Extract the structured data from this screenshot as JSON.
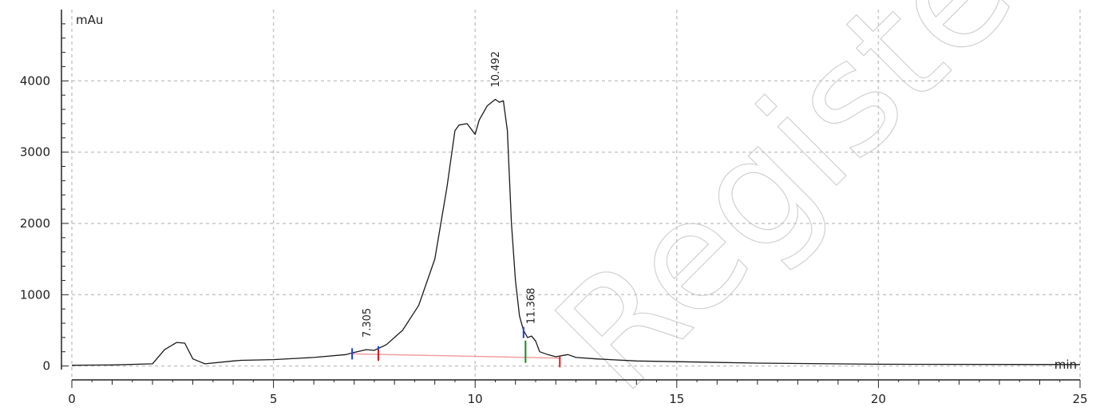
{
  "chart_data": {
    "type": "line",
    "ylabel": "mAu",
    "xlabel": "min",
    "xlim": [
      0,
      25
    ],
    "ylim": [
      -150,
      5000
    ],
    "x_ticks": [
      0,
      5,
      10,
      15,
      20,
      25
    ],
    "y_ticks": [
      0,
      1000,
      2000,
      3000,
      4000
    ],
    "grid": true,
    "colors": {
      "trace": "#1a1a1a",
      "grid": "#c8c8c8",
      "baseline": "#f0a0a0",
      "start_marker": "#1f3fd1",
      "end_marker": "#d42020",
      "split_marker": "#1a8a1a"
    },
    "series": [
      {
        "x": [
          0,
          1,
          2,
          2.3,
          2.6,
          2.8,
          3.0,
          3.3,
          4.0,
          4.2,
          5.0,
          6.0,
          6.8,
          7.0,
          7.3,
          7.5,
          7.8,
          8.2,
          8.6,
          9.0,
          9.3,
          9.5,
          9.6,
          9.8,
          10.0,
          10.1,
          10.3,
          10.5,
          10.6,
          10.7,
          10.8,
          10.9,
          11.0,
          11.1,
          11.2,
          11.3,
          11.4,
          11.5,
          11.6,
          11.8,
          12.0,
          12.3,
          12.5,
          13.0,
          14.0,
          15.0,
          17.0,
          20.0,
          25.0
        ],
        "y": [
          10,
          15,
          30,
          230,
          330,
          320,
          100,
          30,
          70,
          80,
          90,
          120,
          160,
          190,
          230,
          220,
          300,
          500,
          850,
          1500,
          2500,
          3300,
          3380,
          3400,
          3250,
          3450,
          3650,
          3740,
          3700,
          3720,
          3300,
          2000,
          1200,
          700,
          500,
          400,
          420,
          350,
          200,
          160,
          130,
          160,
          120,
          100,
          70,
          60,
          40,
          25,
          20
        ]
      }
    ],
    "annotations": [
      {
        "label": "7.305",
        "x": 7.305,
        "y": 230
      },
      {
        "label": "10.492",
        "x": 10.492,
        "y": 3740
      },
      {
        "label": "11.368",
        "x": 11.368,
        "y": 420
      }
    ],
    "baseline_segment": {
      "x": [
        6.95,
        12.1
      ],
      "y": [
        170,
        110
      ]
    },
    "integration_marks": [
      {
        "x": 6.95,
        "y": 170,
        "kind": "start"
      },
      {
        "x": 7.6,
        "y": 200,
        "kind": "start"
      },
      {
        "x": 7.6,
        "y": 150,
        "kind": "end"
      },
      {
        "x": 11.2,
        "y": 470,
        "kind": "start"
      },
      {
        "x": 11.25,
        "y": 200,
        "kind": "split"
      },
      {
        "x": 12.1,
        "y": 60,
        "kind": "end"
      }
    ]
  }
}
